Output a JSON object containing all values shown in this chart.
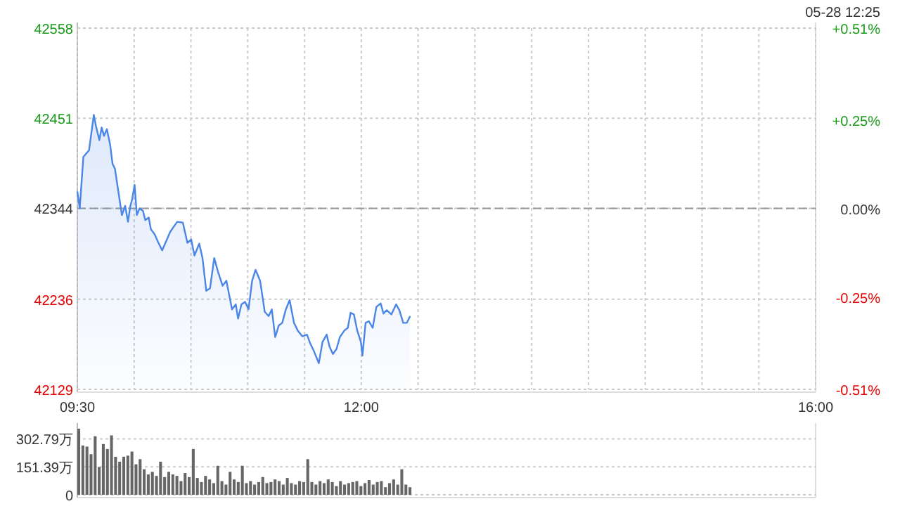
{
  "chart_data": [
    {
      "type": "area",
      "annotations": [
        "05-28 12:25"
      ],
      "color": "#4a86e8",
      "grid": true,
      "x": [
        9.5,
        9.521,
        9.553,
        9.603,
        9.645,
        9.665,
        9.694,
        9.714,
        9.735,
        9.76,
        9.788,
        9.81,
        9.831,
        9.85,
        9.871,
        9.892,
        9.921,
        9.946,
        9.967,
        9.983,
        10.004,
        10.024,
        10.048,
        10.078,
        10.098,
        10.128,
        10.148,
        10.181,
        10.214,
        10.247,
        10.317,
        10.379,
        10.429,
        10.469,
        10.503,
        10.531,
        10.573,
        10.602,
        10.635,
        10.668,
        10.705,
        10.738,
        10.779,
        10.812,
        10.862,
        10.895,
        10.915,
        10.945,
        10.977,
        11.007,
        11.039,
        11.069,
        11.109,
        11.15,
        11.184,
        11.212,
        11.242,
        11.274,
        11.304,
        11.336,
        11.369,
        11.407,
        11.44,
        11.481,
        11.522,
        11.552,
        11.584,
        11.626,
        11.658,
        11.695,
        11.72,
        11.75,
        11.782,
        11.811,
        11.852,
        11.881,
        11.906,
        11.935,
        11.964,
        11.997,
        12.01,
        12.038,
        12.067,
        12.1,
        12.133,
        12.171,
        12.195,
        12.224,
        12.265,
        12.307,
        12.335,
        12.369,
        12.401,
        12.43
      ],
      "values": [
        42364,
        42344,
        42405,
        42413,
        42455,
        42441,
        42425,
        42440,
        42430,
        42438,
        42420,
        42397,
        42391,
        42374,
        42355,
        42336,
        42347,
        42328,
        42347,
        42355,
        42372,
        42336,
        42344,
        42341,
        42330,
        42333,
        42319,
        42313,
        42303,
        42294,
        42316,
        42328,
        42327,
        42303,
        42307,
        42288,
        42302,
        42285,
        42246,
        42249,
        42285,
        42269,
        42252,
        42258,
        42224,
        42230,
        42213,
        42230,
        42233,
        42224,
        42258,
        42271,
        42258,
        42221,
        42216,
        42224,
        42191,
        42205,
        42208,
        42224,
        42235,
        42208,
        42199,
        42192,
        42194,
        42183,
        42174,
        42160,
        42185,
        42194,
        42180,
        42171,
        42177,
        42191,
        42199,
        42202,
        42220,
        42218,
        42199,
        42185,
        42169,
        42208,
        42210,
        42202,
        42227,
        42231,
        42219,
        42223,
        42218,
        42230,
        42223,
        42208,
        42208,
        42216
      ],
      "xlim": [
        9.5,
        16
      ],
      "xticks": [
        {
          "value": 9.5,
          "label": "09:30"
        },
        {
          "value": 10,
          "label": null
        },
        {
          "value": 10.5,
          "label": null
        },
        {
          "value": 11,
          "label": null
        },
        {
          "value": 11.5,
          "label": null
        },
        {
          "value": 12,
          "label": "12:00"
        },
        {
          "value": 12.5,
          "label": null
        },
        {
          "value": 13,
          "label": null
        },
        {
          "value": 13.5,
          "label": null
        },
        {
          "value": 14,
          "label": null
        },
        {
          "value": 14.5,
          "label": null
        },
        {
          "value": 15,
          "label": null
        },
        {
          "value": 15.5,
          "label": null
        },
        {
          "value": 16,
          "label": "16:00"
        }
      ],
      "ylim": [
        42129,
        42558
      ],
      "yticks": [
        42129,
        42236,
        42344,
        42451,
        42558
      ],
      "y2lim": [
        -0.51,
        0.51
      ],
      "y2ticks": [
        {
          "value": -0.51,
          "label": "-0.51%"
        },
        {
          "value": -0.25,
          "label": "-0.25%"
        },
        {
          "value": 0,
          "label": "0.00%"
        },
        {
          "value": 0.25,
          "label": "+0.25%"
        },
        {
          "value": 0.51,
          "label": "+0.51%"
        }
      ],
      "ref_lines": [
        {
          "axis": "y",
          "value": 42344,
          "color": "#999999",
          "line_style": "dashed"
        }
      ]
    },
    {
      "type": "bar",
      "color": "#666666",
      "grid": "y",
      "tick_labels": "y",
      "x": [
        9.5,
        9.536,
        9.572,
        9.608,
        9.644,
        9.68,
        9.716,
        9.752,
        9.788,
        9.824,
        9.86,
        9.896,
        9.932,
        9.968,
        10.004,
        10.04,
        10.076,
        10.112,
        10.148,
        10.184,
        10.22,
        10.256,
        10.292,
        10.328,
        10.364,
        10.4,
        10.436,
        10.472,
        10.508,
        10.544,
        10.58,
        10.616,
        10.652,
        10.688,
        10.724,
        10.76,
        10.796,
        10.832,
        10.868,
        10.904,
        10.94,
        10.976,
        11.012,
        11.048,
        11.084,
        11.12,
        11.156,
        11.192,
        11.228,
        11.264,
        11.3,
        11.336,
        11.372,
        11.408,
        11.444,
        11.48,
        11.516,
        11.552,
        11.588,
        11.624,
        11.66,
        11.696,
        11.732,
        11.768,
        11.804,
        11.84,
        11.876,
        11.912,
        11.948,
        11.984,
        12.02,
        12.056,
        12.092,
        12.128,
        12.164,
        12.2,
        12.236,
        12.272,
        12.308,
        12.344,
        12.38,
        12.416
      ],
      "values": [
        358,
        267,
        261,
        220,
        317,
        151,
        275,
        248,
        322,
        206,
        179,
        206,
        212,
        234,
        165,
        193,
        138,
        110,
        124,
        102,
        179,
        96,
        124,
        110,
        102,
        74,
        118,
        96,
        248,
        91,
        69,
        102,
        83,
        63,
        157,
        74,
        55,
        124,
        83,
        69,
        157,
        63,
        74,
        55,
        69,
        96,
        63,
        69,
        83,
        74,
        55,
        91,
        63,
        55,
        74,
        69,
        193,
        69,
        55,
        74,
        63,
        83,
        69,
        47,
        74,
        55,
        63,
        69,
        74,
        47,
        63,
        80,
        55,
        69,
        74,
        41,
        63,
        83,
        55,
        138,
        55,
        41
      ],
      "xlim": [
        9.5,
        16
      ],
      "ylim": [
        0,
        358
      ],
      "yticks": [
        0,
        {
          "value": 151.39,
          "label": "151.39万"
        },
        {
          "value": 302.79,
          "label": "302.79万"
        }
      ]
    }
  ]
}
